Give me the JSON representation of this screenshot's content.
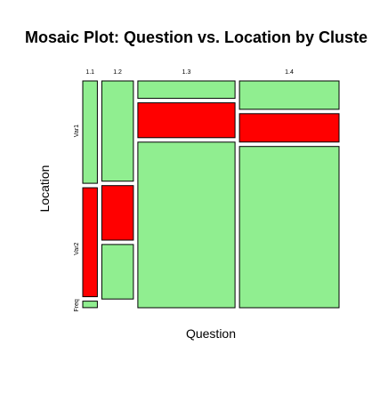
{
  "chart_data": {
    "type": "mosaic",
    "title": "Mosaic Plot: Question vs. Location by Cluste",
    "xlabel": "Question",
    "ylabel": "Location",
    "x_categories": [
      "1.1",
      "1.2",
      "1.3",
      "1.4"
    ],
    "y_categories": [
      "Var1",
      "Var2",
      "Freq"
    ],
    "column_widths": [
      0.06,
      0.13,
      0.4,
      0.41
    ],
    "cells": [
      [
        {
          "level": "Var1",
          "share": 0.47,
          "color": "#90ee90"
        },
        {
          "level": "Var2",
          "share": 0.5,
          "color": "#ff0000"
        },
        {
          "level": "Freq",
          "share": 0.03,
          "color": "#90ee90"
        }
      ],
      [
        {
          "level": "Var1",
          "share": 0.46,
          "color": "#90ee90"
        },
        {
          "level": "Var2",
          "share": 0.25,
          "color": "#ff0000"
        },
        {
          "level": "Var2",
          "share": 0.25,
          "color": "#90ee90"
        }
      ],
      [
        {
          "level": "Var1",
          "share": 0.08,
          "color": "#90ee90"
        },
        {
          "level": "Var1",
          "share": 0.16,
          "color": "#ff0000"
        },
        {
          "level": "Var2",
          "share": 0.76,
          "color": "#90ee90"
        }
      ],
      [
        {
          "level": "Var1",
          "share": 0.13,
          "color": "#90ee90"
        },
        {
          "level": "Var1",
          "share": 0.13,
          "color": "#ff0000"
        },
        {
          "level": "Var2",
          "share": 0.74,
          "color": "#90ee90"
        }
      ]
    ],
    "y_tick_positions": [
      0.78,
      0.26,
      0.01
    ],
    "colors": {
      "light": "#90ee90",
      "dark": "#ff0000",
      "border": "#000000"
    }
  }
}
